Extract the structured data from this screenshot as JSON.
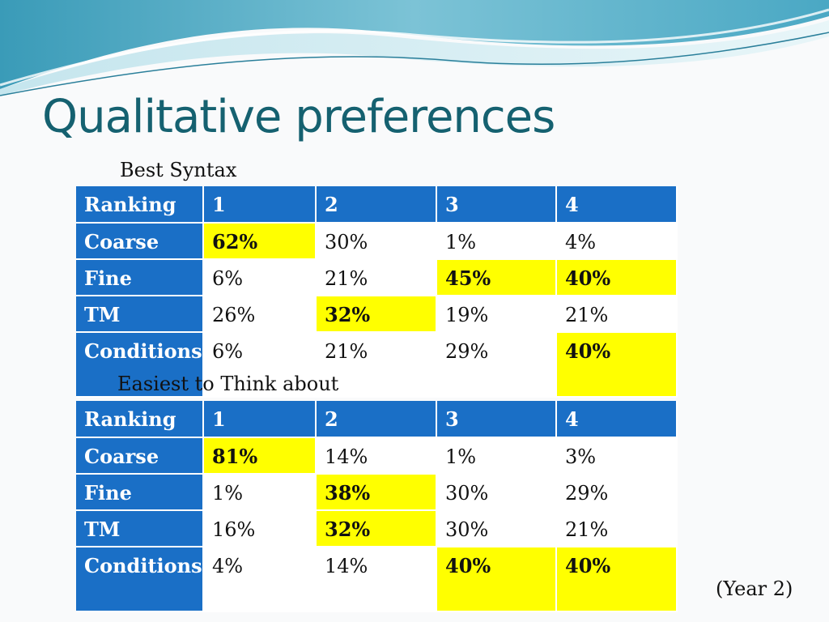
{
  "slide": {
    "title": "Qualitative preferences",
    "note": "(Year 2)"
  },
  "colors": {
    "title": "#156170",
    "header_fill": "#1a6fc6",
    "highlight": "#ffff00"
  },
  "tables": [
    {
      "caption": "Best Syntax",
      "header": [
        "Ranking",
        "1",
        "2",
        "3",
        "4"
      ],
      "rows": [
        {
          "label": "Coarse",
          "cells": [
            "62%",
            "30%",
            "1%",
            "4%"
          ],
          "highlighted": [
            0
          ]
        },
        {
          "label": "Fine",
          "cells": [
            "6%",
            "21%",
            "45%",
            "40%"
          ],
          "highlighted": [
            2,
            3
          ]
        },
        {
          "label": "TM",
          "cells": [
            "26%",
            "32%",
            "19%",
            "21%"
          ],
          "highlighted": [
            1
          ]
        },
        {
          "label": "Conditions",
          "cells": [
            "6%",
            "21%",
            "29%",
            "40%"
          ],
          "highlighted": [
            3
          ]
        }
      ]
    },
    {
      "caption": "Easiest to Think about",
      "header": [
        "Ranking",
        "1",
        "2",
        "3",
        "4"
      ],
      "rows": [
        {
          "label": "Coarse",
          "cells": [
            "81%",
            "14%",
            "1%",
            "3%"
          ],
          "highlighted": [
            0
          ]
        },
        {
          "label": "Fine",
          "cells": [
            "1%",
            "38%",
            "30%",
            "29%"
          ],
          "highlighted": [
            1
          ]
        },
        {
          "label": "TM",
          "cells": [
            "16%",
            "32%",
            "30%",
            "21%"
          ],
          "highlighted": [
            1
          ]
        },
        {
          "label": "Conditions",
          "cells": [
            "4%",
            "14%",
            "40%",
            "40%"
          ],
          "highlighted": [
            2,
            3
          ]
        }
      ]
    }
  ]
}
